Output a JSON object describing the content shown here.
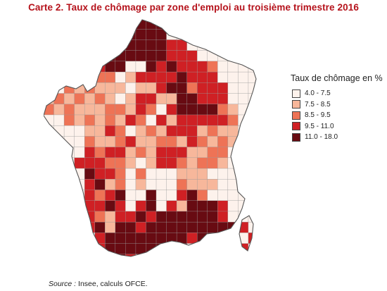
{
  "title": "Carte 2. Taux de chômage par zone d'emploi au troisième trimestre 2016",
  "legend": {
    "title": "Taux de chômage en %",
    "items": [
      {
        "label": "4.0 - 7.5",
        "color": "#fdf2ec"
      },
      {
        "label": "7.5 - 8.5",
        "color": "#f7b79b"
      },
      {
        "label": "8.5 - 9.5",
        "color": "#ee7356"
      },
      {
        "label": "9.5 - 11.0",
        "color": "#cf2024"
      },
      {
        "label": "11.0 - 18.0",
        "color": "#680b12"
      }
    ]
  },
  "source": {
    "label": "Source :",
    "text": "Insee, calculs OFCE."
  }
}
